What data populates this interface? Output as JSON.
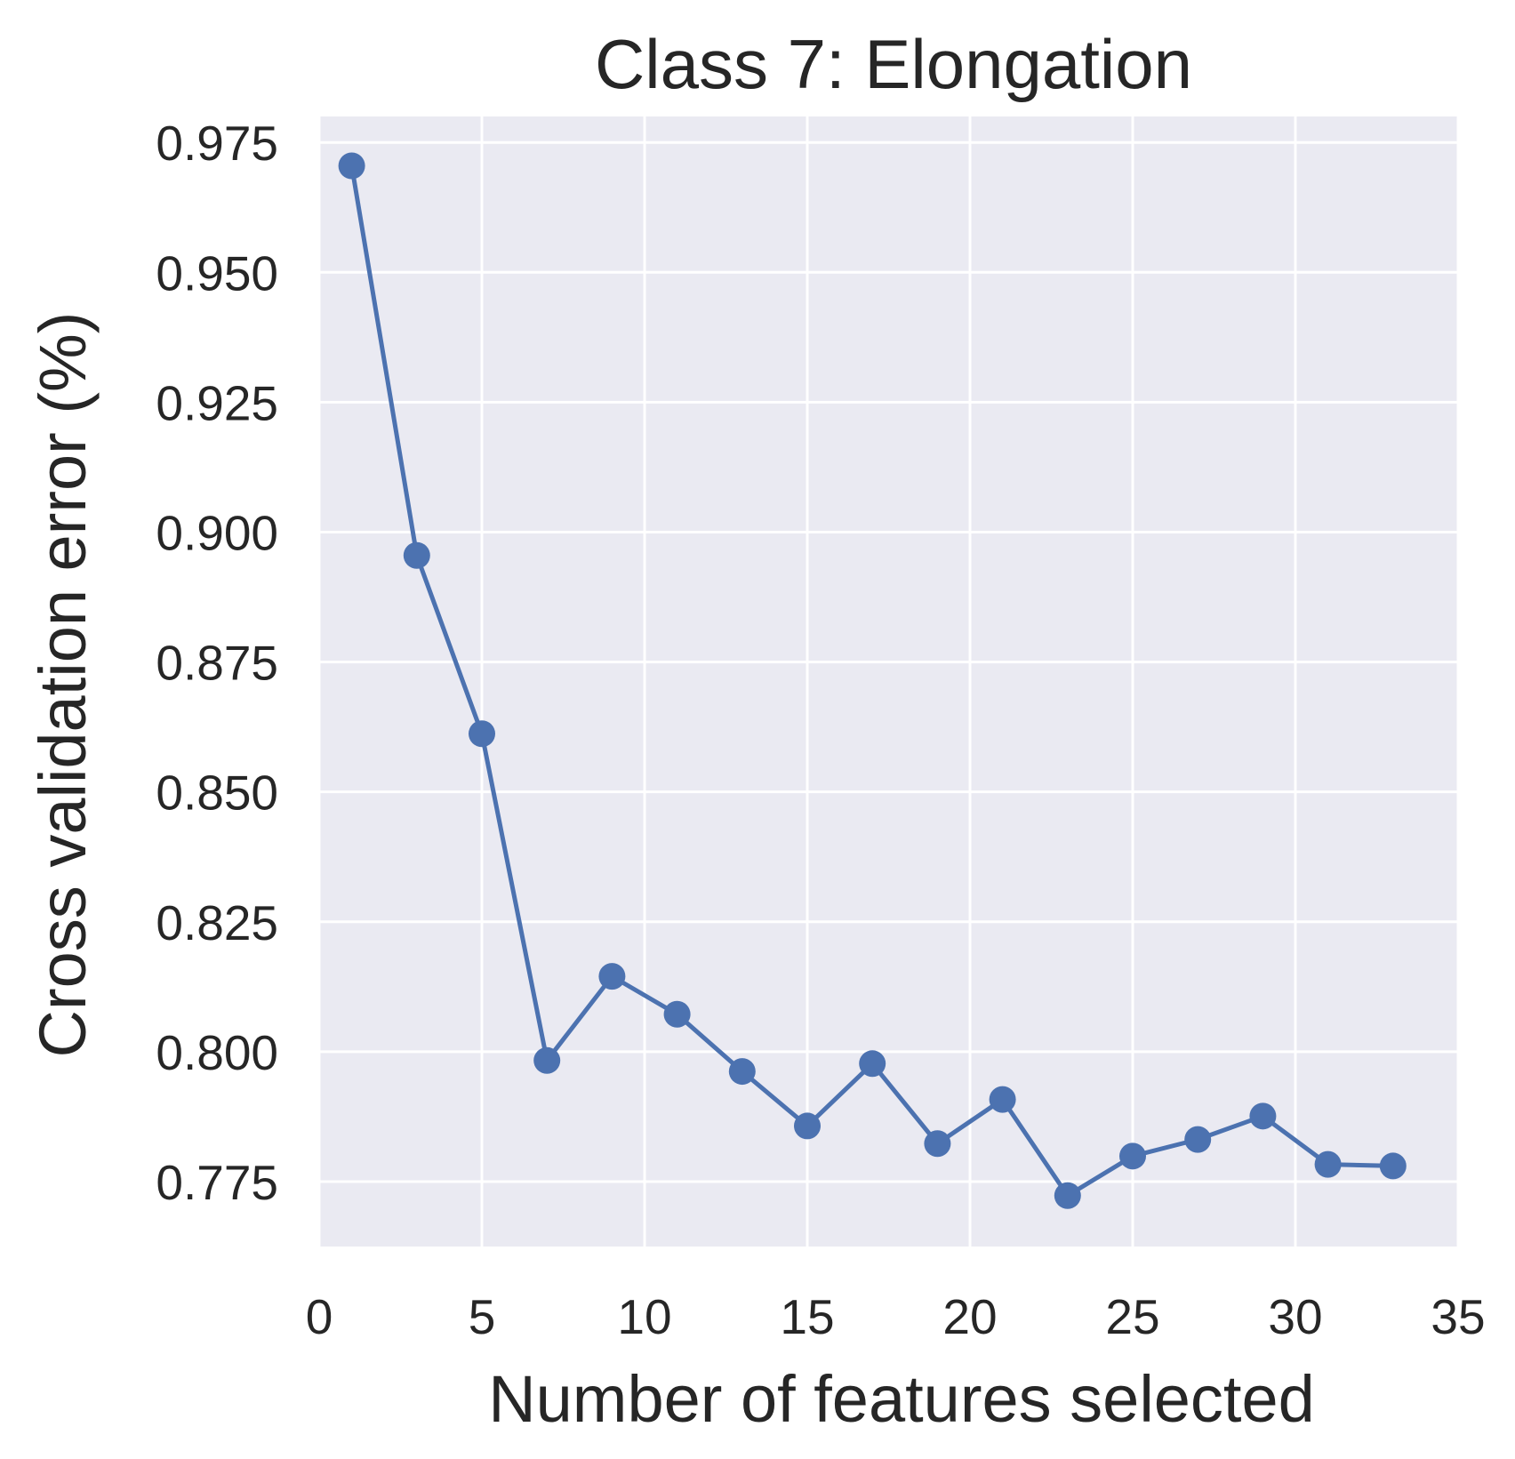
{
  "chart_data": {
    "type": "line",
    "title": "Class 7: Elongation",
    "xlabel": "Number of features selected",
    "ylabel": "Cross validation error (%)",
    "xlim": [
      0,
      35
    ],
    "ylim": [
      0.7625,
      0.98
    ],
    "x_ticks": [
      0,
      5,
      10,
      15,
      20,
      25,
      30,
      35
    ],
    "x_tick_labels": [
      "0",
      "5",
      "10",
      "15",
      "20",
      "25",
      "30",
      "35"
    ],
    "y_ticks": [
      0.775,
      0.8,
      0.825,
      0.85,
      0.875,
      0.9,
      0.925,
      0.95,
      0.975
    ],
    "y_tick_labels": [
      "0.775",
      "0.800",
      "0.825",
      "0.850",
      "0.875",
      "0.900",
      "0.925",
      "0.950",
      "0.975"
    ],
    "grid": true,
    "series": [
      {
        "x": [
          1,
          3,
          5,
          7,
          9,
          11,
          13,
          15,
          17,
          19,
          21,
          23,
          25,
          27,
          29,
          31,
          33
        ],
        "y": [
          0.9705,
          0.8955,
          0.8612,
          0.7983,
          0.8145,
          0.8072,
          0.7962,
          0.7857,
          0.7977,
          0.7823,
          0.7908,
          0.7723,
          0.7799,
          0.7831,
          0.7876,
          0.7783,
          0.778
        ],
        "color": "#4c72b0",
        "marker": "circle"
      }
    ]
  },
  "style": {
    "background": "#ffffff",
    "plot_background": "#eaeaf2",
    "grid_color": "#ffffff",
    "text_color": "#262626"
  }
}
